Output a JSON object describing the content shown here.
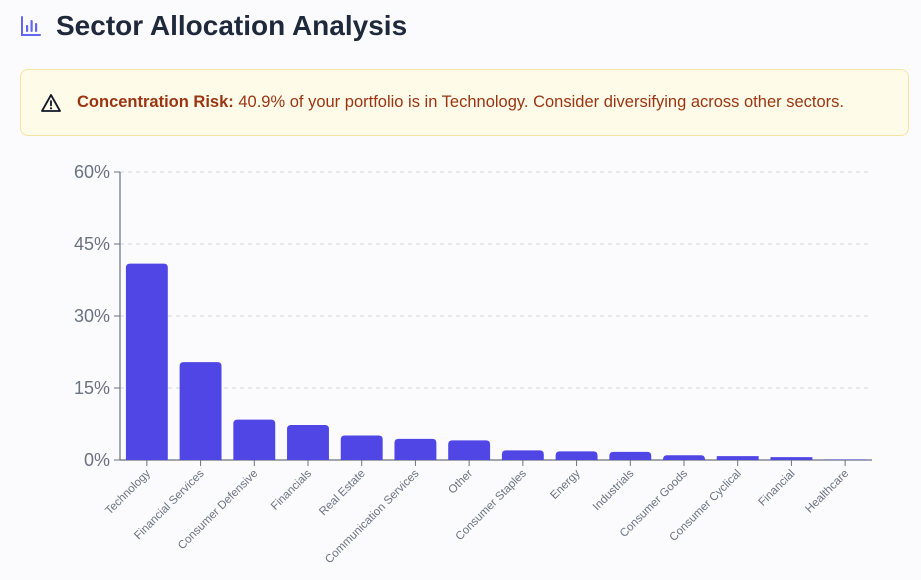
{
  "header": {
    "title": "Sector Allocation Analysis",
    "icon": "bar-chart-icon",
    "icon_color": "#6366f1"
  },
  "alert": {
    "icon": "warning-triangle-icon",
    "label": "Concentration Risk:",
    "message": " 40.9% of your portfolio is in Technology. Consider diversifying across other sectors.",
    "text_color": "#9a3412",
    "background": "#fefbe8",
    "border": "#f6e3a1"
  },
  "chart_data": {
    "type": "bar",
    "categories": [
      "Technology",
      "Financial Services",
      "Consumer Defensive",
      "Financials",
      "Real Estate",
      "Communication Services",
      "Other",
      "Consumer Staples",
      "Energy",
      "Industrials",
      "Consumer Goods",
      "Consumer Cyclical",
      "Financial",
      "Healthcare"
    ],
    "values": [
      40.9,
      20.4,
      8.4,
      7.3,
      5.1,
      4.4,
      4.1,
      2.0,
      1.8,
      1.7,
      1.0,
      0.8,
      0.6,
      0.1
    ],
    "yticks": [
      "0%",
      "15%",
      "30%",
      "45%",
      "60%"
    ],
    "ylim": [
      0,
      60
    ],
    "y_unit": "%",
    "grid": true,
    "bar_color": "#4f46e5",
    "title": "",
    "xlabel": "",
    "ylabel": ""
  }
}
